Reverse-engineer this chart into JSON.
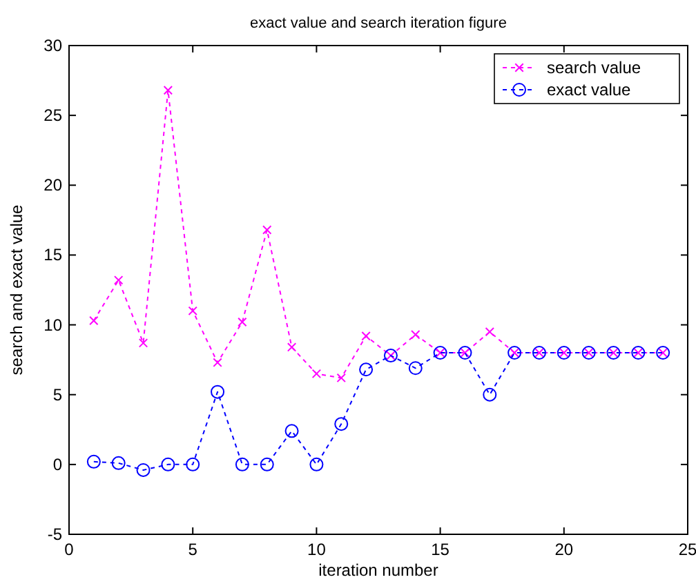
{
  "chart_data": {
    "type": "line",
    "title": "exact value and search iteration figure",
    "xlabel": "iteration number",
    "ylabel": "search and exact value",
    "x": [
      1,
      2,
      3,
      4,
      5,
      6,
      7,
      8,
      9,
      10,
      11,
      12,
      13,
      14,
      15,
      16,
      17,
      18,
      19,
      20,
      21,
      22,
      23,
      24
    ],
    "series": [
      {
        "name": "search value",
        "color": "#ff00ff",
        "marker": "cross",
        "values": [
          10.3,
          13.2,
          8.7,
          26.8,
          11.0,
          7.3,
          10.2,
          16.8,
          8.4,
          6.5,
          6.2,
          9.2,
          7.8,
          9.3,
          8.0,
          8.0,
          9.5,
          8.0,
          8.0,
          8.0,
          8.0,
          8.0,
          8.0,
          8.0
        ]
      },
      {
        "name": "exact value",
        "color": "#0000ff",
        "marker": "circle",
        "values": [
          0.2,
          0.1,
          -0.4,
          0,
          0,
          5.2,
          0,
          0,
          2.4,
          0,
          2.9,
          6.8,
          7.8,
          6.9,
          8,
          8,
          5,
          8,
          8,
          8,
          8,
          8,
          8,
          8
        ]
      }
    ],
    "xlim": [
      0,
      25
    ],
    "xticks": [
      0,
      5,
      10,
      15,
      20,
      25
    ],
    "ylim": [
      -5,
      30
    ],
    "yticks": [
      -5,
      0,
      5,
      10,
      15,
      20,
      25,
      30
    ],
    "line_style": "dashed",
    "legend": "top right",
    "grid": false
  }
}
